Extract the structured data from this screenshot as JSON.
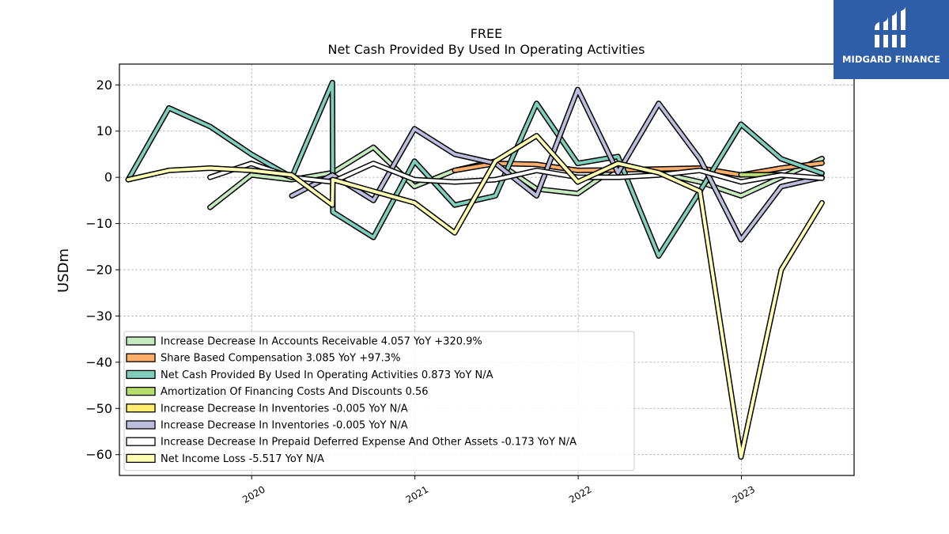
{
  "chart_data": {
    "type": "line",
    "title": "FREE",
    "subtitle": "Net Cash Provided By Used In Operating Activities",
    "ylabel": "USDm",
    "xlabel": "",
    "xlim": [
      2019.19,
      2023.69
    ],
    "ylim": [
      -64.5,
      24.5
    ],
    "x_ticks": [
      "2020",
      "2021",
      "2022",
      "2023"
    ],
    "y_ticks": [
      20,
      10,
      0,
      -10,
      -20,
      -30,
      -40,
      -50,
      -60
    ],
    "grid": true,
    "legend_position": "lower-left",
    "series": [
      {
        "name": "Increase Decrease In Accounts Receivable  4.057 YoY +320.9%",
        "color": "#c7e9c0",
        "x": [
          "2019-09-30",
          "2019-12-31",
          "2020-03-31",
          "2020-06-30",
          "2020-09-30",
          "2020-12-31",
          "2021-03-31",
          "2021-06-30",
          "2021-09-30",
          "2021-12-31",
          "2022-03-31",
          "2022-06-30",
          "2022-09-30",
          "2022-12-31",
          "2023-03-31",
          "2023-06-30"
        ],
        "values": [
          -6.5,
          0.5,
          -0.5,
          1.0,
          6.5,
          -2.0,
          1.5,
          3.5,
          -2.5,
          -3.5,
          2.5,
          1.0,
          -1.0,
          -4.0,
          0.0,
          4.057
        ]
      },
      {
        "name": "Share Based Compensation  3.085 YoY +97.3%",
        "color": "#fdae6b",
        "x": [
          "2021-03-31",
          "2021-06-30",
          "2021-09-30",
          "2021-12-31",
          "2022-03-31",
          "2022-06-30",
          "2022-09-30",
          "2022-12-31",
          "2023-03-31",
          "2023-06-30"
        ],
        "values": [
          1.5,
          3.0,
          2.8,
          1.5,
          1.6,
          1.8,
          2.0,
          0.5,
          2.0,
          3.085
        ]
      },
      {
        "name": "Net Cash Provided By Used In Operating Activities  0.873 YoY N/A",
        "color": "#7fcdbb",
        "x": [
          "2019-03-31",
          "2019-06-30",
          "2019-09-30",
          "2019-12-31",
          "2020-03-31",
          "2020-06-30",
          "2020-07-01",
          "2020-09-30",
          "2020-12-31",
          "2021-03-31",
          "2021-06-30",
          "2021-09-30",
          "2021-12-31",
          "2022-03-31",
          "2022-06-30",
          "2022-09-30",
          "2022-12-31",
          "2023-03-31",
          "2023-06-30"
        ],
        "values": [
          -0.5,
          15.0,
          11.0,
          5.0,
          0.0,
          20.5,
          -7.5,
          -13.0,
          3.5,
          -6.0,
          -4.0,
          16.0,
          3.0,
          4.5,
          -17.0,
          -3.0,
          11.5,
          4.0,
          0.873
        ]
      },
      {
        "name": "Amortization Of Financing Costs And Discounts  0.56",
        "color": "#b5de6b",
        "x": [
          "2022-12-31",
          "2023-03-31"
        ],
        "values": [
          0.56,
          0.56
        ]
      },
      {
        "name": "Increase Decrease In Inventories  -0.005 YoY N/A",
        "color": "#ffed6f",
        "x": [],
        "values": []
      },
      {
        "name": "Increase Decrease In Inventories  -0.005 YoY N/A",
        "color": "#bcbddc",
        "x": [
          "2020-03-31",
          "2020-06-30",
          "2020-09-30",
          "2020-12-31",
          "2021-03-31",
          "2021-06-30",
          "2021-09-30",
          "2021-12-31",
          "2022-03-31",
          "2022-06-30",
          "2022-09-30",
          "2022-12-31",
          "2023-03-31",
          "2023-06-30"
        ],
        "values": [
          -4.0,
          0.5,
          -5.0,
          10.5,
          5.0,
          3.0,
          -4.0,
          19.0,
          1.0,
          16.0,
          4.0,
          -13.5,
          -2.0,
          -0.005
        ]
      },
      {
        "name": "Increase Decrease In Prepaid Deferred Expense And Other Assets  -0.173 YoY N/A",
        "color": "#ffffff",
        "x": [
          "2019-09-30",
          "2019-12-31",
          "2020-03-31",
          "2020-06-30",
          "2020-09-30",
          "2020-12-31",
          "2021-03-31",
          "2021-06-30",
          "2021-09-30",
          "2021-12-31",
          "2022-03-31",
          "2022-06-30",
          "2022-09-30",
          "2022-12-31",
          "2023-03-31",
          "2023-06-30"
        ],
        "values": [
          0.0,
          3.0,
          0.0,
          -1.0,
          3.0,
          -0.5,
          -1.0,
          -0.5,
          1.5,
          0.0,
          0.0,
          0.5,
          1.5,
          -1.0,
          0.5,
          -0.173
        ]
      },
      {
        "name": "Net Income Loss  -5.517 YoY N/A",
        "color": "#ffffb3",
        "x": [
          "2019-03-31",
          "2019-06-30",
          "2019-09-30",
          "2019-12-31",
          "2020-03-31",
          "2020-06-30",
          "2020-07-01",
          "2020-09-30",
          "2020-12-31",
          "2021-03-31",
          "2021-06-30",
          "2021-09-30",
          "2021-12-31",
          "2022-03-31",
          "2022-06-30",
          "2022-09-30",
          "2022-12-31",
          "2023-03-31",
          "2023-06-30"
        ],
        "values": [
          -0.5,
          1.5,
          2.0,
          1.5,
          0.5,
          -6.0,
          -0.5,
          -3.0,
          -5.5,
          -12.0,
          3.5,
          9.0,
          -1.0,
          3.0,
          1.0,
          -3.0,
          -60.5,
          -20.0,
          -5.517
        ]
      }
    ]
  },
  "brand": {
    "name": "MIDGARD FINANCE",
    "color": "#2f5ea8"
  }
}
